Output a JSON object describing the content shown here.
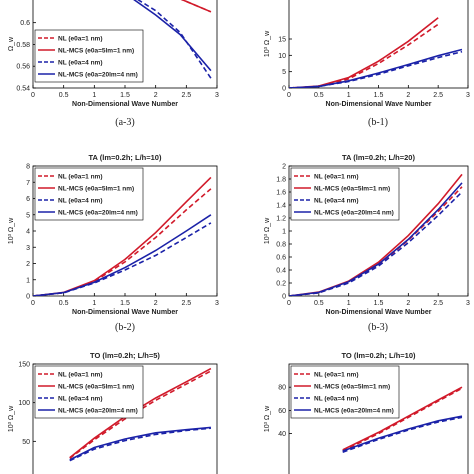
{
  "colors": {
    "red": "#d11a2a",
    "blue": "#1b22a8"
  },
  "captions": [
    "(a-3)",
    "(b-1)",
    "(b-2)",
    "(b-3)"
  ],
  "chart_data": [
    {
      "id": "a3",
      "type": "line",
      "title": "",
      "xlabel": "Non-Dimensional Wave Number",
      "ylabel": "Ω_w",
      "xlim": [
        0,
        3
      ],
      "ylim": [
        0.54,
        0.63
      ],
      "xticks": [
        "0",
        "0.5",
        "1",
        "1.5",
        "2",
        "2.5",
        "3"
      ],
      "yticks": [
        "0.54",
        "0.56",
        "0.58",
        "0.6",
        "0.62"
      ],
      "legend": [
        "NL (e0a=1 nm)",
        "NL-MCS (e0a=5lm=1 nm)",
        "NL (e0a=4 nm)",
        "NL-MCS (e0a=20lm=4 nm)"
      ],
      "series": [
        {
          "style": "red-dash",
          "x": [
            1.9,
            2.1,
            2.9
          ],
          "y": [
            0.634,
            0.629,
            0.61
          ]
        },
        {
          "style": "red-solid",
          "x": [
            1.9,
            2.1,
            2.9
          ],
          "y": [
            0.634,
            0.629,
            0.61
          ]
        },
        {
          "style": "blue-dash",
          "x": [
            1.35,
            1.6,
            2.0,
            2.4,
            2.9
          ],
          "y": [
            0.63,
            0.625,
            0.611,
            0.591,
            0.549
          ]
        },
        {
          "style": "blue-solid",
          "x": [
            1.35,
            1.6,
            2.0,
            2.4,
            2.9
          ],
          "y": [
            0.63,
            0.623,
            0.607,
            0.589,
            0.556
          ]
        }
      ]
    },
    {
      "id": "b1",
      "type": "line",
      "title": "",
      "xlabel": "Non-Dimensional Wave Number",
      "ylabel": "10³ Ω_w",
      "xlim": [
        0,
        3
      ],
      "ylim": [
        0,
        30
      ],
      "xticks": [
        "0",
        "0.5",
        "1",
        "1.5",
        "2",
        "2.5",
        "3"
      ],
      "yticks": [
        "0",
        "5",
        "10",
        "15"
      ],
      "legend": [],
      "series": [
        {
          "style": "red-dash",
          "x": [
            0,
            0.5,
            1,
            1.5,
            2,
            2.5
          ],
          "y": [
            0,
            0.5,
            2.8,
            7.5,
            13.2,
            19.5
          ]
        },
        {
          "style": "red-solid",
          "x": [
            0,
            0.5,
            1,
            1.5,
            2,
            2.5
          ],
          "y": [
            0,
            0.6,
            3.2,
            8.2,
            14.3,
            21.5
          ]
        },
        {
          "style": "blue-dash",
          "x": [
            0,
            0.5,
            1,
            1.5,
            2,
            2.5,
            2.9
          ],
          "y": [
            0,
            0.5,
            2.0,
            4.2,
            6.8,
            9.3,
            11.1
          ]
        },
        {
          "style": "blue-solid",
          "x": [
            0,
            0.5,
            1,
            1.5,
            2,
            2.5,
            2.9
          ],
          "y": [
            0,
            0.5,
            2.2,
            4.6,
            7.2,
            9.9,
            11.8
          ]
        }
      ]
    },
    {
      "id": "b2",
      "type": "line",
      "title": "TA (lm=0.2h; L/h=10)",
      "xlabel": "Non-Dimensional Wave Number",
      "ylabel": "10³ Ω_w",
      "xlim": [
        0,
        3
      ],
      "ylim": [
        0,
        8
      ],
      "xticks": [
        "0",
        "0.5",
        "1",
        "1.5",
        "2",
        "2.5",
        "3"
      ],
      "yticks": [
        "0",
        "1",
        "2",
        "3",
        "4",
        "5",
        "6",
        "7",
        "8"
      ],
      "legend": [
        "NL (e0a=1 nm)",
        "NL-MCS (e0a=5lm=1 nm)",
        "NL (e0a=4 nm)",
        "NL-MCS (e0a=20lm=4 nm)"
      ],
      "series": [
        {
          "style": "red-dash",
          "x": [
            0,
            0.5,
            1,
            1.5,
            2,
            2.5,
            2.9
          ],
          "y": [
            0,
            0.2,
            0.9,
            2.1,
            3.6,
            5.3,
            6.6
          ]
        },
        {
          "style": "red-solid",
          "x": [
            0,
            0.5,
            1,
            1.5,
            2,
            2.5,
            2.9
          ],
          "y": [
            0,
            0.22,
            0.95,
            2.25,
            3.9,
            5.8,
            7.3
          ]
        },
        {
          "style": "blue-dash",
          "x": [
            0,
            0.5,
            1,
            1.5,
            2,
            2.5,
            2.9
          ],
          "y": [
            0,
            0.2,
            0.8,
            1.6,
            2.5,
            3.6,
            4.5
          ]
        },
        {
          "style": "blue-solid",
          "x": [
            0,
            0.5,
            1,
            1.5,
            2,
            2.5,
            2.9
          ],
          "y": [
            0,
            0.21,
            0.85,
            1.75,
            2.8,
            4.0,
            5.0
          ]
        }
      ]
    },
    {
      "id": "b3",
      "type": "line",
      "title": "TA (lm=0.2h; L/h=20)",
      "xlabel": "Non-Dimensional Wave Number",
      "ylabel": "10³ Ω_w",
      "xlim": [
        0,
        3
      ],
      "ylim": [
        0,
        2
      ],
      "xticks": [
        "0",
        "0.5",
        "1",
        "1.5",
        "2",
        "2.5",
        "3"
      ],
      "yticks": [
        "0",
        "0.2",
        "0.4",
        "0.6",
        "0.8",
        "1",
        "1.2",
        "1.4",
        "1.6",
        "1.8",
        "2"
      ],
      "legend": [
        "NL (e0a=1 nm)",
        "NL-MCS (e0a=5lm=1 nm)",
        "NL (e0a=4 nm)",
        "NL-MCS (e0a=20lm=4 nm)"
      ],
      "series": [
        {
          "style": "red-dash",
          "x": [
            0,
            0.5,
            1,
            1.5,
            2,
            2.5,
            2.9
          ],
          "y": [
            0,
            0.05,
            0.21,
            0.48,
            0.86,
            1.3,
            1.68
          ]
        },
        {
          "style": "red-solid",
          "x": [
            0,
            0.5,
            1,
            1.5,
            2,
            2.5,
            2.9
          ],
          "y": [
            0,
            0.06,
            0.23,
            0.52,
            0.93,
            1.42,
            1.87
          ]
        },
        {
          "style": "blue-dash",
          "x": [
            0,
            0.5,
            1,
            1.5,
            2,
            2.5,
            2.9
          ],
          "y": [
            0,
            0.05,
            0.2,
            0.46,
            0.82,
            1.24,
            1.6
          ]
        },
        {
          "style": "blue-solid",
          "x": [
            0,
            0.5,
            1,
            1.5,
            2,
            2.5,
            2.9
          ],
          "y": [
            0,
            0.055,
            0.22,
            0.49,
            0.87,
            1.33,
            1.74
          ]
        }
      ]
    },
    {
      "id": "c1",
      "type": "line",
      "title": "TO (lm=0.2h; L/h=5)",
      "xlabel": "",
      "ylabel": "10³ Ω_w",
      "xlim": [
        0,
        3
      ],
      "ylim": [
        0,
        150
      ],
      "xticks": [],
      "yticks": [
        "150",
        "100",
        "50"
      ],
      "legend": [
        "NL (e0a=1 nm)",
        "NL-MCS (e0a=5lm=1 nm)",
        "NL (e0a=4 nm)",
        "NL-MCS (e0a=20lm=4 nm)"
      ],
      "series": [
        {
          "style": "red-dash",
          "x": [
            0.6,
            1,
            1.5,
            2,
            2.5,
            2.9
          ],
          "y": [
            28,
            52,
            79,
            103,
            124,
            141
          ]
        },
        {
          "style": "red-solid",
          "x": [
            0.6,
            1,
            1.5,
            2,
            2.5,
            2.9
          ],
          "y": [
            29,
            54,
            82,
            106,
            127,
            144
          ]
        },
        {
          "style": "blue-dash",
          "x": [
            0.6,
            1,
            1.5,
            2,
            2.5,
            2.9
          ],
          "y": [
            25,
            40,
            51,
            59,
            64,
            67
          ]
        },
        {
          "style": "blue-solid",
          "x": [
            0.6,
            1,
            1.5,
            2,
            2.5,
            2.9
          ],
          "y": [
            26,
            42,
            53,
            61,
            65,
            68
          ]
        }
      ]
    },
    {
      "id": "c2",
      "type": "line",
      "title": "TO (lm=0.2h; L/h=10)",
      "xlabel": "",
      "ylabel": "10³ Ω_w",
      "xlim": [
        0,
        3
      ],
      "ylim": [
        0,
        100
      ],
      "xticks": [],
      "yticks": [
        "80",
        "60",
        "40"
      ],
      "legend": [
        "NL (e0a=1 nm)",
        "NL-MCS (e0a=5lm=1 nm)",
        "NL (e0a=4 nm)",
        "NL-MCS (e0a=20lm=4 nm)"
      ],
      "series": [
        {
          "style": "red-dash",
          "x": [
            0.9,
            1.5,
            2,
            2.5,
            2.9
          ],
          "y": [
            25,
            40,
            54,
            68,
            79
          ]
        },
        {
          "style": "red-solid",
          "x": [
            0.9,
            1.5,
            2,
            2.5,
            2.9
          ],
          "y": [
            26,
            41,
            55,
            69,
            80
          ]
        },
        {
          "style": "blue-dash",
          "x": [
            0.9,
            1.5,
            2,
            2.5,
            2.9
          ],
          "y": [
            24,
            35,
            43,
            50,
            54
          ]
        },
        {
          "style": "blue-solid",
          "x": [
            0.9,
            1.5,
            2,
            2.5,
            2.9
          ],
          "y": [
            25,
            36,
            44,
            51,
            55
          ]
        }
      ]
    }
  ]
}
